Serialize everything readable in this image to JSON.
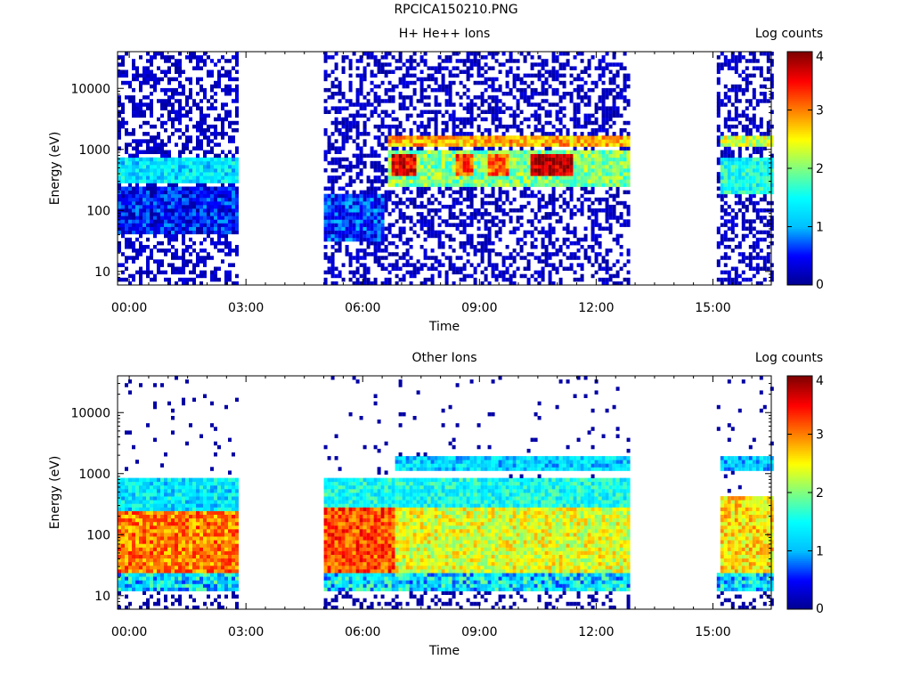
{
  "page_title": "RPCICA150210.PNG",
  "chart_data": [
    {
      "type": "heatmap",
      "title": "H+ He++ Ions",
      "xlabel": "Time",
      "ylabel": "Energy (eV)",
      "x_tick_labels": [
        "00:00",
        "03:00",
        "06:00",
        "09:00",
        "12:00",
        "15:00"
      ],
      "x_ticks_hours": [
        0,
        3,
        6,
        9,
        12,
        15
      ],
      "xlim_hours": [
        -0.3,
        16.5
      ],
      "y_scale": "log",
      "y_tick_labels": [
        "10",
        "100",
        "1000",
        "10000"
      ],
      "y_ticks": [
        10,
        100,
        1000,
        10000
      ],
      "ylim": [
        6,
        40000
      ],
      "colorbar": {
        "label": "Log counts",
        "tick_labels": [
          "0",
          "1",
          "2",
          "3",
          "4"
        ],
        "range": [
          0,
          4
        ]
      },
      "colors": [
        "#00008f",
        "#0000ff",
        "#00bfff",
        "#00ffff",
        "#7fff7f",
        "#ffff00",
        "#ff7f00",
        "#ff0000",
        "#7f0000"
      ],
      "data_intervals_hours": [
        [
          -0.3,
          2.75
        ],
        [
          5.0,
          12.8
        ],
        [
          15.1,
          16.5
        ]
      ],
      "bands": [
        {
          "t_start": -0.3,
          "t_end": 2.75,
          "e_low": 280,
          "e_high": 700,
          "log_counts": 1.3
        },
        {
          "t_start": -0.3,
          "t_end": 2.75,
          "e_low": 40,
          "e_high": 250,
          "log_counts": 0.5
        },
        {
          "t_start": 6.6,
          "t_end": 12.8,
          "e_low": 1050,
          "e_high": 1700,
          "log_counts": 2.8
        },
        {
          "t_start": 6.6,
          "t_end": 12.8,
          "e_low": 250,
          "e_high": 1000,
          "log_counts": 2.0
        },
        {
          "t_start": 6.7,
          "t_end": 7.3,
          "e_low": 350,
          "e_high": 800,
          "log_counts": 3.6
        },
        {
          "t_start": 8.3,
          "t_end": 8.8,
          "e_low": 350,
          "e_high": 800,
          "log_counts": 3.2
        },
        {
          "t_start": 9.2,
          "t_end": 9.7,
          "e_low": 350,
          "e_high": 800,
          "log_counts": 3.1
        },
        {
          "t_start": 10.3,
          "t_end": 11.4,
          "e_low": 350,
          "e_high": 800,
          "log_counts": 3.8
        },
        {
          "t_start": 15.1,
          "t_end": 16.5,
          "e_low": 1050,
          "e_high": 1600,
          "log_counts": 2.3
        },
        {
          "t_start": 15.1,
          "t_end": 16.5,
          "e_low": 200,
          "e_high": 700,
          "log_counts": 1.5
        },
        {
          "t_start": 5.0,
          "t_end": 6.5,
          "e_low": 30,
          "e_high": 200,
          "log_counts": 0.6
        }
      ]
    },
    {
      "type": "heatmap",
      "title": "Other Ions",
      "xlabel": "Time",
      "ylabel": "Energy (eV)",
      "x_tick_labels": [
        "00:00",
        "03:00",
        "06:00",
        "09:00",
        "12:00",
        "15:00"
      ],
      "x_ticks_hours": [
        0,
        3,
        6,
        9,
        12,
        15
      ],
      "xlim_hours": [
        -0.3,
        16.5
      ],
      "y_scale": "log",
      "y_tick_labels": [
        "10",
        "100",
        "1000",
        "10000"
      ],
      "y_ticks": [
        10,
        100,
        1000,
        10000
      ],
      "ylim": [
        6,
        40000
      ],
      "colorbar": {
        "label": "Log counts",
        "tick_labels": [
          "0",
          "1",
          "2",
          "3",
          "4"
        ],
        "range": [
          0,
          4
        ]
      },
      "colors": [
        "#00008f",
        "#0000ff",
        "#00bfff",
        "#00ffff",
        "#7fff7f",
        "#ffff00",
        "#ff7f00",
        "#ff0000",
        "#7f0000"
      ],
      "data_intervals_hours": [
        [
          -0.3,
          2.75
        ],
        [
          5.0,
          12.8
        ],
        [
          15.1,
          16.5
        ]
      ],
      "bands": [
        {
          "t_start": -0.3,
          "t_end": 2.75,
          "e_low": 25,
          "e_high": 250,
          "log_counts": 3.0
        },
        {
          "t_start": -0.3,
          "t_end": 2.75,
          "e_low": 250,
          "e_high": 800,
          "log_counts": 1.3
        },
        {
          "t_start": 5.0,
          "t_end": 6.8,
          "e_low": 25,
          "e_high": 300,
          "log_counts": 3.2
        },
        {
          "t_start": 5.0,
          "t_end": 12.8,
          "e_low": 300,
          "e_high": 900,
          "log_counts": 1.5
        },
        {
          "t_start": 6.8,
          "t_end": 12.8,
          "e_low": 25,
          "e_high": 300,
          "log_counts": 2.4
        },
        {
          "t_start": 6.8,
          "t_end": 12.8,
          "e_low": 1100,
          "e_high": 2000,
          "log_counts": 1.2
        },
        {
          "t_start": 15.1,
          "t_end": 16.5,
          "e_low": 25,
          "e_high": 400,
          "log_counts": 2.6
        },
        {
          "t_start": 15.1,
          "t_end": 16.5,
          "e_low": 1100,
          "e_high": 2000,
          "log_counts": 1.1
        }
      ]
    }
  ]
}
